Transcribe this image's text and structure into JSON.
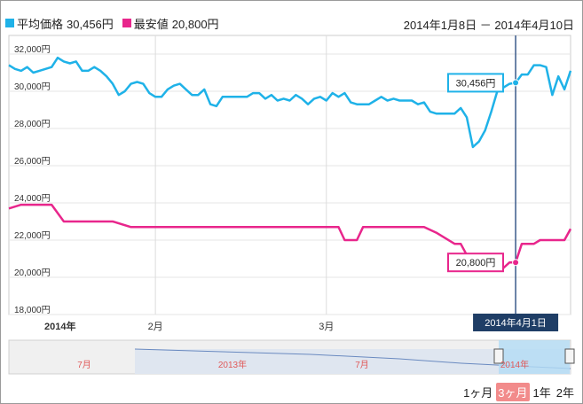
{
  "legend": {
    "avg": {
      "label": "平均価格",
      "value": "30,456円",
      "color": "#1fb2e8"
    },
    "min": {
      "label": "最安値",
      "value": "20,800円",
      "color": "#e8268c"
    }
  },
  "date_range": "2014年1月8日 － 2014年4月10日",
  "cursor": {
    "date_label": "2014年4月1日",
    "avg_label": "30,456円",
    "min_label": "20,800円"
  },
  "zoom": {
    "buttons": [
      "1ヶ月",
      "3ヶ月",
      "1年",
      "2年"
    ],
    "active_index": 1
  },
  "navigator": {
    "labels": [
      "7月",
      "2013年",
      "7月",
      "2014年"
    ]
  },
  "chart_data": {
    "type": "line",
    "x_labels": [
      "2014年",
      "2月",
      "3月"
    ],
    "x_label_positions": [
      "2014-01-08",
      "2014-02-01",
      "2014-03-01"
    ],
    "x_range": [
      "2014-01-08",
      "2014-04-10"
    ],
    "ylim": [
      18000,
      33000
    ],
    "y_ticks": [
      "18,000円",
      "20,000円",
      "22,000円",
      "24,000円",
      "26,000円",
      "28,000円",
      "30,000円",
      "32,000円"
    ],
    "series": [
      {
        "name": "平均価格",
        "color": "#1fb2e8",
        "points": [
          [
            "2014-01-08",
            31400
          ],
          [
            "2014-01-09",
            31200
          ],
          [
            "2014-01-10",
            31100
          ],
          [
            "2014-01-11",
            31300
          ],
          [
            "2014-01-12",
            31000
          ],
          [
            "2014-01-13",
            31100
          ],
          [
            "2014-01-14",
            31200
          ],
          [
            "2014-01-15",
            31300
          ],
          [
            "2014-01-16",
            31800
          ],
          [
            "2014-01-17",
            31600
          ],
          [
            "2014-01-18",
            31500
          ],
          [
            "2014-01-19",
            31600
          ],
          [
            "2014-01-20",
            31100
          ],
          [
            "2014-01-21",
            31100
          ],
          [
            "2014-01-22",
            31300
          ],
          [
            "2014-01-23",
            31100
          ],
          [
            "2014-01-24",
            30800
          ],
          [
            "2014-01-25",
            30400
          ],
          [
            "2014-01-26",
            29800
          ],
          [
            "2014-01-27",
            30000
          ],
          [
            "2014-01-28",
            30400
          ],
          [
            "2014-01-29",
            30500
          ],
          [
            "2014-01-30",
            30400
          ],
          [
            "2014-01-31",
            29900
          ],
          [
            "2014-02-01",
            29700
          ],
          [
            "2014-02-02",
            29700
          ],
          [
            "2014-02-03",
            30100
          ],
          [
            "2014-02-04",
            30300
          ],
          [
            "2014-02-05",
            30400
          ],
          [
            "2014-02-06",
            30100
          ],
          [
            "2014-02-07",
            29800
          ],
          [
            "2014-02-08",
            29800
          ],
          [
            "2014-02-09",
            30100
          ],
          [
            "2014-02-10",
            29300
          ],
          [
            "2014-02-11",
            29200
          ],
          [
            "2014-02-12",
            29700
          ],
          [
            "2014-02-13",
            29700
          ],
          [
            "2014-02-14",
            29700
          ],
          [
            "2014-02-15",
            29700
          ],
          [
            "2014-02-16",
            29700
          ],
          [
            "2014-02-17",
            29900
          ],
          [
            "2014-02-18",
            29900
          ],
          [
            "2014-02-19",
            29600
          ],
          [
            "2014-02-20",
            29800
          ],
          [
            "2014-02-21",
            29500
          ],
          [
            "2014-02-22",
            29600
          ],
          [
            "2014-02-23",
            29500
          ],
          [
            "2014-02-24",
            29800
          ],
          [
            "2014-02-25",
            29600
          ],
          [
            "2014-02-26",
            29300
          ],
          [
            "2014-02-27",
            29600
          ],
          [
            "2014-02-28",
            29700
          ],
          [
            "2014-03-01",
            29500
          ],
          [
            "2014-03-02",
            29900
          ],
          [
            "2014-03-03",
            29700
          ],
          [
            "2014-03-04",
            29900
          ],
          [
            "2014-03-05",
            29400
          ],
          [
            "2014-03-06",
            29300
          ],
          [
            "2014-03-07",
            29300
          ],
          [
            "2014-03-08",
            29300
          ],
          [
            "2014-03-09",
            29500
          ],
          [
            "2014-03-10",
            29700
          ],
          [
            "2014-03-11",
            29500
          ],
          [
            "2014-03-12",
            29600
          ],
          [
            "2014-03-13",
            29500
          ],
          [
            "2014-03-14",
            29500
          ],
          [
            "2014-03-15",
            29500
          ],
          [
            "2014-03-16",
            29300
          ],
          [
            "2014-03-17",
            29400
          ],
          [
            "2014-03-18",
            28900
          ],
          [
            "2014-03-19",
            28800
          ],
          [
            "2014-03-20",
            28800
          ],
          [
            "2014-03-21",
            28800
          ],
          [
            "2014-03-22",
            28800
          ],
          [
            "2014-03-23",
            29100
          ],
          [
            "2014-03-24",
            28600
          ],
          [
            "2014-03-25",
            27000
          ],
          [
            "2014-03-26",
            27300
          ],
          [
            "2014-03-27",
            27900
          ],
          [
            "2014-03-28",
            28900
          ],
          [
            "2014-03-29",
            30000
          ],
          [
            "2014-03-30",
            30200
          ],
          [
            "2014-03-31",
            30400
          ],
          [
            "2014-04-01",
            30456
          ],
          [
            "2014-04-02",
            30900
          ],
          [
            "2014-04-03",
            30900
          ],
          [
            "2014-04-04",
            31400
          ],
          [
            "2014-04-05",
            31400
          ],
          [
            "2014-04-06",
            31300
          ],
          [
            "2014-04-07",
            29800
          ],
          [
            "2014-04-08",
            30800
          ],
          [
            "2014-04-09",
            30100
          ],
          [
            "2014-04-10",
            31100
          ]
        ]
      },
      {
        "name": "最安値",
        "color": "#e8268c",
        "points": [
          [
            "2014-01-08",
            23700
          ],
          [
            "2014-01-10",
            23900
          ],
          [
            "2014-01-15",
            23900
          ],
          [
            "2014-01-17",
            23000
          ],
          [
            "2014-01-25",
            23000
          ],
          [
            "2014-01-28",
            22700
          ],
          [
            "2014-01-30",
            22700
          ],
          [
            "2014-02-01",
            22700
          ],
          [
            "2014-02-15",
            22700
          ],
          [
            "2014-02-16",
            22700
          ],
          [
            "2014-03-03",
            22700
          ],
          [
            "2014-03-04",
            22000
          ],
          [
            "2014-03-06",
            22000
          ],
          [
            "2014-03-07",
            22700
          ],
          [
            "2014-03-14",
            22700
          ],
          [
            "2014-03-17",
            22700
          ],
          [
            "2014-03-19",
            22400
          ],
          [
            "2014-03-22",
            21800
          ],
          [
            "2014-03-23",
            21800
          ],
          [
            "2014-03-24",
            21200
          ],
          [
            "2014-03-28",
            21200
          ],
          [
            "2014-03-30",
            20500
          ],
          [
            "2014-03-31",
            20800
          ],
          [
            "2014-04-01",
            20800
          ],
          [
            "2014-04-02",
            21800
          ],
          [
            "2014-04-04",
            21800
          ],
          [
            "2014-04-05",
            22000
          ],
          [
            "2014-04-09",
            22000
          ],
          [
            "2014-04-10",
            22600
          ]
        ]
      }
    ]
  }
}
